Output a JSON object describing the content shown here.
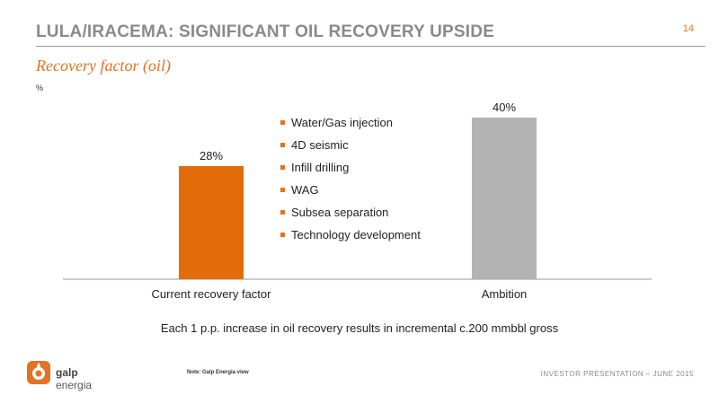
{
  "slide": {
    "title": "LULA/IRACEMA: SIGNIFICANT OIL RECOVERY UPSIDE",
    "page_number": "14",
    "footnote": "Each 1 p.p. increase in oil recovery results in incremental c.200 mmbbl gross",
    "note": "Note: Galp Energia view",
    "footer_right": "INVESTOR PRESENTATION – JUNE 2015"
  },
  "logo": {
    "brand_bold": "galp",
    "brand_rest": " energia"
  },
  "levers": [
    "Water/Gas injection",
    "4D seismic",
    "Infill drilling",
    "WAG",
    "Subsea separation",
    "Technology development"
  ],
  "colors": {
    "accent": "#e37222",
    "bar_current": "#e36c0a",
    "bar_ambition": "#b3b3b3",
    "title_grey": "#8a8a8a"
  },
  "chart_data": {
    "type": "bar",
    "title": "Recovery factor (oil)",
    "ylabel": "%",
    "categories": [
      "Current recovery factor",
      "Ambition"
    ],
    "values": [
      28,
      40
    ],
    "data_labels": [
      "28%",
      "40%"
    ],
    "bar_colors": [
      "#e36c0a",
      "#b3b3b3"
    ],
    "ylim": [
      0,
      45
    ],
    "grid": false
  }
}
